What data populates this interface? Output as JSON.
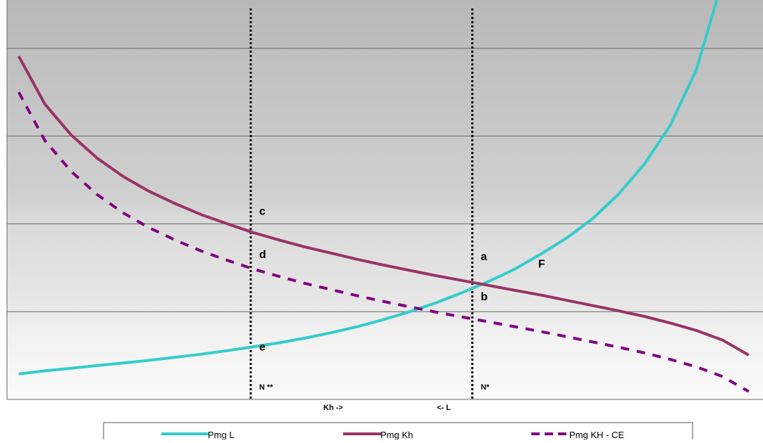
{
  "chart_data": {
    "type": "line",
    "title": "",
    "x": [
      1,
      2,
      3,
      4,
      5,
      6,
      7,
      8,
      9,
      10,
      11,
      12,
      13,
      14,
      15,
      16,
      17,
      18,
      19,
      20,
      21,
      22,
      23,
      24,
      25,
      26,
      27,
      28,
      29
    ],
    "series": [
      {
        "name": "Pmg L",
        "color": "#33CCCC",
        "dash": "solid",
        "values": [
          0.08,
          0.15,
          0.21,
          0.27,
          0.33,
          0.39,
          0.46,
          0.53,
          0.61,
          0.7,
          0.79,
          0.9,
          1.02,
          1.16,
          1.32,
          1.5,
          1.7,
          1.93,
          2.18,
          2.46,
          2.8,
          3.17,
          3.61,
          4.17,
          4.86,
          5.75,
          7.02,
          9.05,
          12.0
        ]
      },
      {
        "name": "Pmg Kh",
        "color": "#993366",
        "dash": "solid",
        "values": [
          7.32,
          6.23,
          5.53,
          5.0,
          4.58,
          4.24,
          3.96,
          3.71,
          3.5,
          3.3,
          3.13,
          2.97,
          2.83,
          2.69,
          2.56,
          2.44,
          2.32,
          2.21,
          2.1,
          1.99,
          1.88,
          1.76,
          1.64,
          1.52,
          1.39,
          1.24,
          1.07,
          0.85,
          0.51
        ]
      },
      {
        "name": "Pmg KH - CE",
        "color": "#800080",
        "dash": "dashed",
        "values": [
          6.5,
          5.4,
          4.7,
          4.17,
          3.75,
          3.41,
          3.13,
          2.88,
          2.67,
          2.47,
          2.3,
          2.14,
          2.0,
          1.86,
          1.73,
          1.61,
          1.49,
          1.38,
          1.27,
          1.16,
          1.05,
          0.93,
          0.81,
          0.69,
          0.56,
          0.41,
          0.24,
          0.02,
          -0.32
        ]
      }
    ],
    "ylim": [
      -0.5,
      8.6
    ],
    "xlim": [
      0.55,
      29.55
    ],
    "y_gridlines": [
      1.5,
      3.5,
      5.5,
      7.5
    ],
    "grid": true,
    "background": "gray gradient bands, light at bottom to dark at top",
    "vertical_markers": [
      {
        "x": 9.9,
        "label": "N **"
      },
      {
        "x": 18.4,
        "label": "N*"
      }
    ],
    "point_labels": [
      {
        "text": "c",
        "x": 9.9,
        "y": 3.67
      },
      {
        "text": "d",
        "x": 9.9,
        "y": 2.69
      },
      {
        "text": "e",
        "x": 9.9,
        "y": 0.58
      },
      {
        "text": "a",
        "x": 18.4,
        "y": 2.64
      },
      {
        "text": "b",
        "x": 18.4,
        "y": 1.73
      },
      {
        "text": "F",
        "x": 20.6,
        "y": 2.47
      }
    ],
    "axis_labels": {
      "left_arrow": "Kh ->",
      "right_arrow": "<- L"
    },
    "legend": {
      "position": "bottom",
      "entries": [
        "Pmg L",
        "Pmg Kh",
        "Pmg KH - CE"
      ]
    }
  }
}
